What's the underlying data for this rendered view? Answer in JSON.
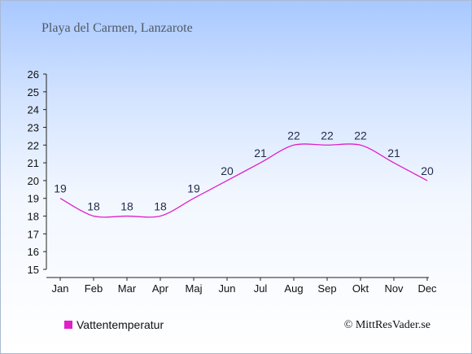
{
  "chart_data": {
    "type": "line",
    "title": "Playa del Carmen, Lanzarote",
    "categories": [
      "Jan",
      "Feb",
      "Mar",
      "Apr",
      "Maj",
      "Jun",
      "Jul",
      "Aug",
      "Sep",
      "Okt",
      "Nov",
      "Dec"
    ],
    "series": [
      {
        "name": "Vattentemperatur",
        "color": "#e020c8",
        "values": [
          19,
          18,
          18,
          18,
          19,
          20,
          21,
          22,
          22,
          22,
          21,
          20
        ]
      }
    ],
    "ylim": [
      15,
      26
    ],
    "yticks": [
      15,
      16,
      17,
      18,
      19,
      20,
      21,
      22,
      23,
      24,
      25,
      26
    ],
    "xlabel": "",
    "ylabel": "",
    "grid": false,
    "legend_position": "bottom-left"
  },
  "credit": "© MittResVader.se"
}
